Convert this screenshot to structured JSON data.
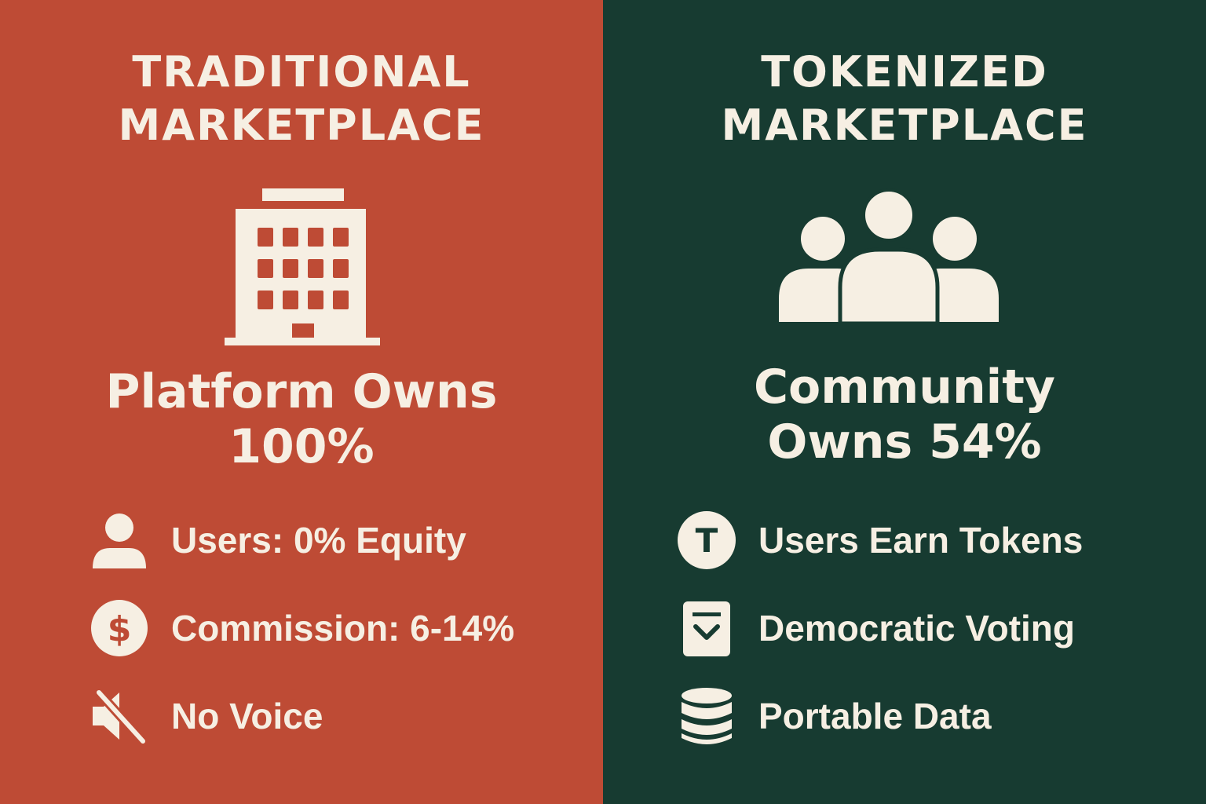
{
  "colors": {
    "traditional_bg": "#BE4B35",
    "tokenized_bg": "#173B31",
    "foreground": "#F6EFE3"
  },
  "traditional": {
    "title_line1": "TRADITIONAL",
    "title_line2": "MARKETPLACE",
    "hero_icon": "building-icon",
    "headline_line1": "Platform Owns",
    "headline_line2": "100%",
    "features": [
      {
        "icon": "user-icon",
        "label": "Users: 0% Equity"
      },
      {
        "icon": "dollar-icon",
        "label": "Commission: 6-14%"
      },
      {
        "icon": "muted-speaker-icon",
        "label": "No Voice"
      }
    ]
  },
  "tokenized": {
    "title_line1": "TOKENIZED",
    "title_line2": "MARKETPLACE",
    "hero_icon": "community-icon",
    "headline_line1": "Community",
    "headline_line2": "Owns 54%",
    "features": [
      {
        "icon": "token-icon",
        "label": "Users Earn Tokens",
        "icon_letter": "T"
      },
      {
        "icon": "ballot-icon",
        "label": "Democratic Voting"
      },
      {
        "icon": "database-icon",
        "label": "Portable Data"
      }
    ]
  }
}
